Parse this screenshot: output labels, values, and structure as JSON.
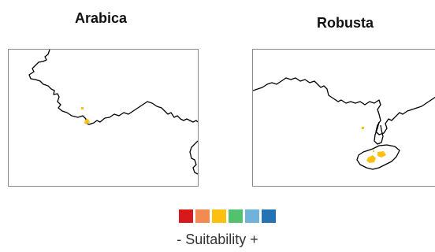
{
  "panels": [
    {
      "title": "Arabica"
    },
    {
      "title": "Robusta"
    }
  ],
  "legend": {
    "label": "- Suitability +",
    "colors": [
      "#d7191c",
      "#f28a52",
      "#fdc010",
      "#54c16e",
      "#6fb3db",
      "#2373b5"
    ]
  },
  "styles": {
    "coastline_color": "#000000",
    "suitable_area_color": "#fdc010",
    "frame_color": "#8a8a8a"
  }
}
